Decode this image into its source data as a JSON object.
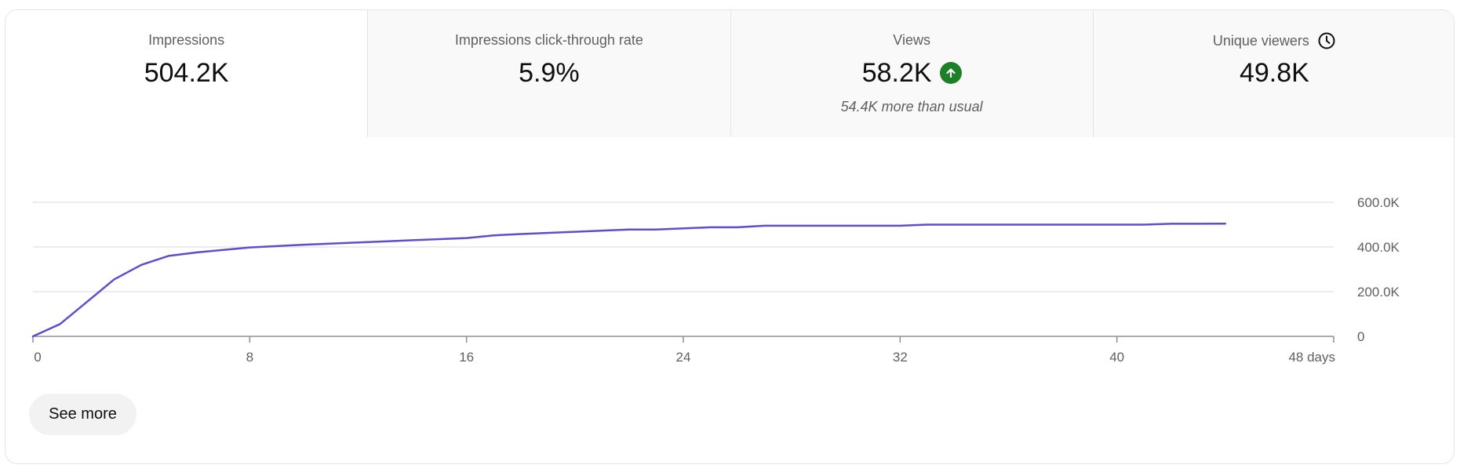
{
  "metrics": [
    {
      "label": "Impressions",
      "value": "504.2K",
      "selected": true
    },
    {
      "label": "Impressions click-through rate",
      "value": "5.9%"
    },
    {
      "label": "Views",
      "value": "58.2K",
      "sub": "54.4K more than usual",
      "icon": "arrow-up-icon",
      "icon_color": "#1d7f28"
    },
    {
      "label": "Unique viewers",
      "value": "49.8K",
      "icon": "clock-icon"
    }
  ],
  "chart_data": {
    "type": "line",
    "xlabel": "",
    "ylabel": "",
    "x_tick_labels": [
      "0",
      "8",
      "16",
      "24",
      "32",
      "40",
      "48 days"
    ],
    "x_ticks": [
      0,
      8,
      16,
      24,
      32,
      40,
      48
    ],
    "y_tick_labels": [
      "0",
      "200.0K",
      "400.0K",
      "600.0K"
    ],
    "y_ticks": [
      0,
      200000,
      400000,
      600000
    ],
    "xlim": [
      0,
      48
    ],
    "ylim": [
      0,
      600000
    ],
    "grid": true,
    "line_color": "#5b4fcf",
    "x": [
      0,
      1,
      2,
      3,
      4,
      5,
      6,
      8,
      10,
      12,
      14,
      16,
      17,
      18,
      20,
      22,
      23,
      25,
      26,
      27,
      30,
      32,
      33,
      35,
      38,
      40,
      41,
      42,
      44
    ],
    "values": [
      0,
      55000,
      155000,
      255000,
      320000,
      360000,
      375000,
      398000,
      410000,
      420000,
      430000,
      440000,
      452000,
      458000,
      468000,
      478000,
      478000,
      488000,
      488000,
      495000,
      495000,
      495000,
      500000,
      500000,
      500000,
      500000,
      500000,
      504000,
      504200
    ]
  },
  "actions": {
    "see_more": "See more"
  }
}
